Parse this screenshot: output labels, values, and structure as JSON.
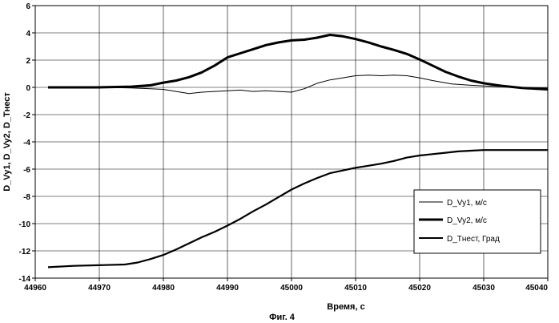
{
  "chart_data": {
    "type": "line",
    "xlabel": "Время, с",
    "ylabel": "D_Vy1, D_Vy2, D_Тнест",
    "caption": "Фиг. 4",
    "xlim": [
      44960,
      45040
    ],
    "ylim": [
      -14,
      6
    ],
    "xticks": [
      44960,
      44970,
      44980,
      44990,
      45000,
      45010,
      45020,
      45030,
      45040
    ],
    "yticks": [
      6,
      4,
      2,
      0,
      -2,
      -4,
      -6,
      -8,
      -10,
      -12,
      -14
    ],
    "grid": true,
    "legend_position": "bottom-right",
    "series": [
      {
        "name": "D_Vy1, м/с",
        "line": "thin",
        "x": [
          44962,
          44970,
          44975,
          44978,
          44980,
          44982,
          44984,
          44986,
          44988,
          44990,
          44992,
          44994,
          44996,
          44998,
          45000,
          45002,
          45004,
          45006,
          45008,
          45010,
          45012,
          45014,
          45016,
          45018,
          45020,
          45022,
          45025,
          45028,
          45030,
          45033,
          45036,
          45040
        ],
        "y": [
          0.0,
          0.0,
          -0.05,
          -0.1,
          -0.15,
          -0.3,
          -0.45,
          -0.35,
          -0.3,
          -0.25,
          -0.2,
          -0.3,
          -0.25,
          -0.3,
          -0.35,
          -0.1,
          0.3,
          0.55,
          0.7,
          0.85,
          0.9,
          0.85,
          0.9,
          0.85,
          0.7,
          0.5,
          0.25,
          0.15,
          0.1,
          0.05,
          0.0,
          -0.05
        ]
      },
      {
        "name": "D_Vy2, м/с",
        "line": "thick",
        "x": [
          44962,
          44965,
          44970,
          44975,
          44978,
          44980,
          44982,
          44984,
          44986,
          44988,
          44990,
          44992,
          44994,
          44996,
          44998,
          45000,
          45002,
          45004,
          45006,
          45008,
          45010,
          45012,
          45014,
          45016,
          45018,
          45020,
          45022,
          45024,
          45026,
          45028,
          45030,
          45033,
          45036,
          45040
        ],
        "y": [
          0.0,
          0.0,
          0.0,
          0.05,
          0.15,
          0.35,
          0.5,
          0.75,
          1.1,
          1.6,
          2.2,
          2.5,
          2.8,
          3.1,
          3.3,
          3.45,
          3.5,
          3.65,
          3.85,
          3.75,
          3.55,
          3.3,
          3.0,
          2.75,
          2.45,
          2.05,
          1.6,
          1.15,
          0.8,
          0.5,
          0.3,
          0.1,
          -0.05,
          -0.15
        ]
      },
      {
        "name": "D_Тнест, Град",
        "line": "medium",
        "x": [
          44962,
          44966,
          44970,
          44974,
          44976,
          44978,
          44980,
          44982,
          44984,
          44986,
          44988,
          44990,
          44992,
          44994,
          44996,
          44998,
          45000,
          45002,
          45004,
          45006,
          45008,
          45010,
          45012,
          45014,
          45016,
          45018,
          45020,
          45022,
          45024,
          45026,
          45028,
          45030,
          45034,
          45040
        ],
        "y": [
          -13.2,
          -13.1,
          -13.05,
          -13.0,
          -12.85,
          -12.6,
          -12.3,
          -11.9,
          -11.45,
          -11.0,
          -10.6,
          -10.15,
          -9.65,
          -9.1,
          -8.6,
          -8.05,
          -7.5,
          -7.05,
          -6.65,
          -6.3,
          -6.1,
          -5.9,
          -5.75,
          -5.6,
          -5.4,
          -5.15,
          -5.0,
          -4.9,
          -4.8,
          -4.7,
          -4.65,
          -4.6,
          -4.6,
          -4.6
        ]
      }
    ]
  }
}
